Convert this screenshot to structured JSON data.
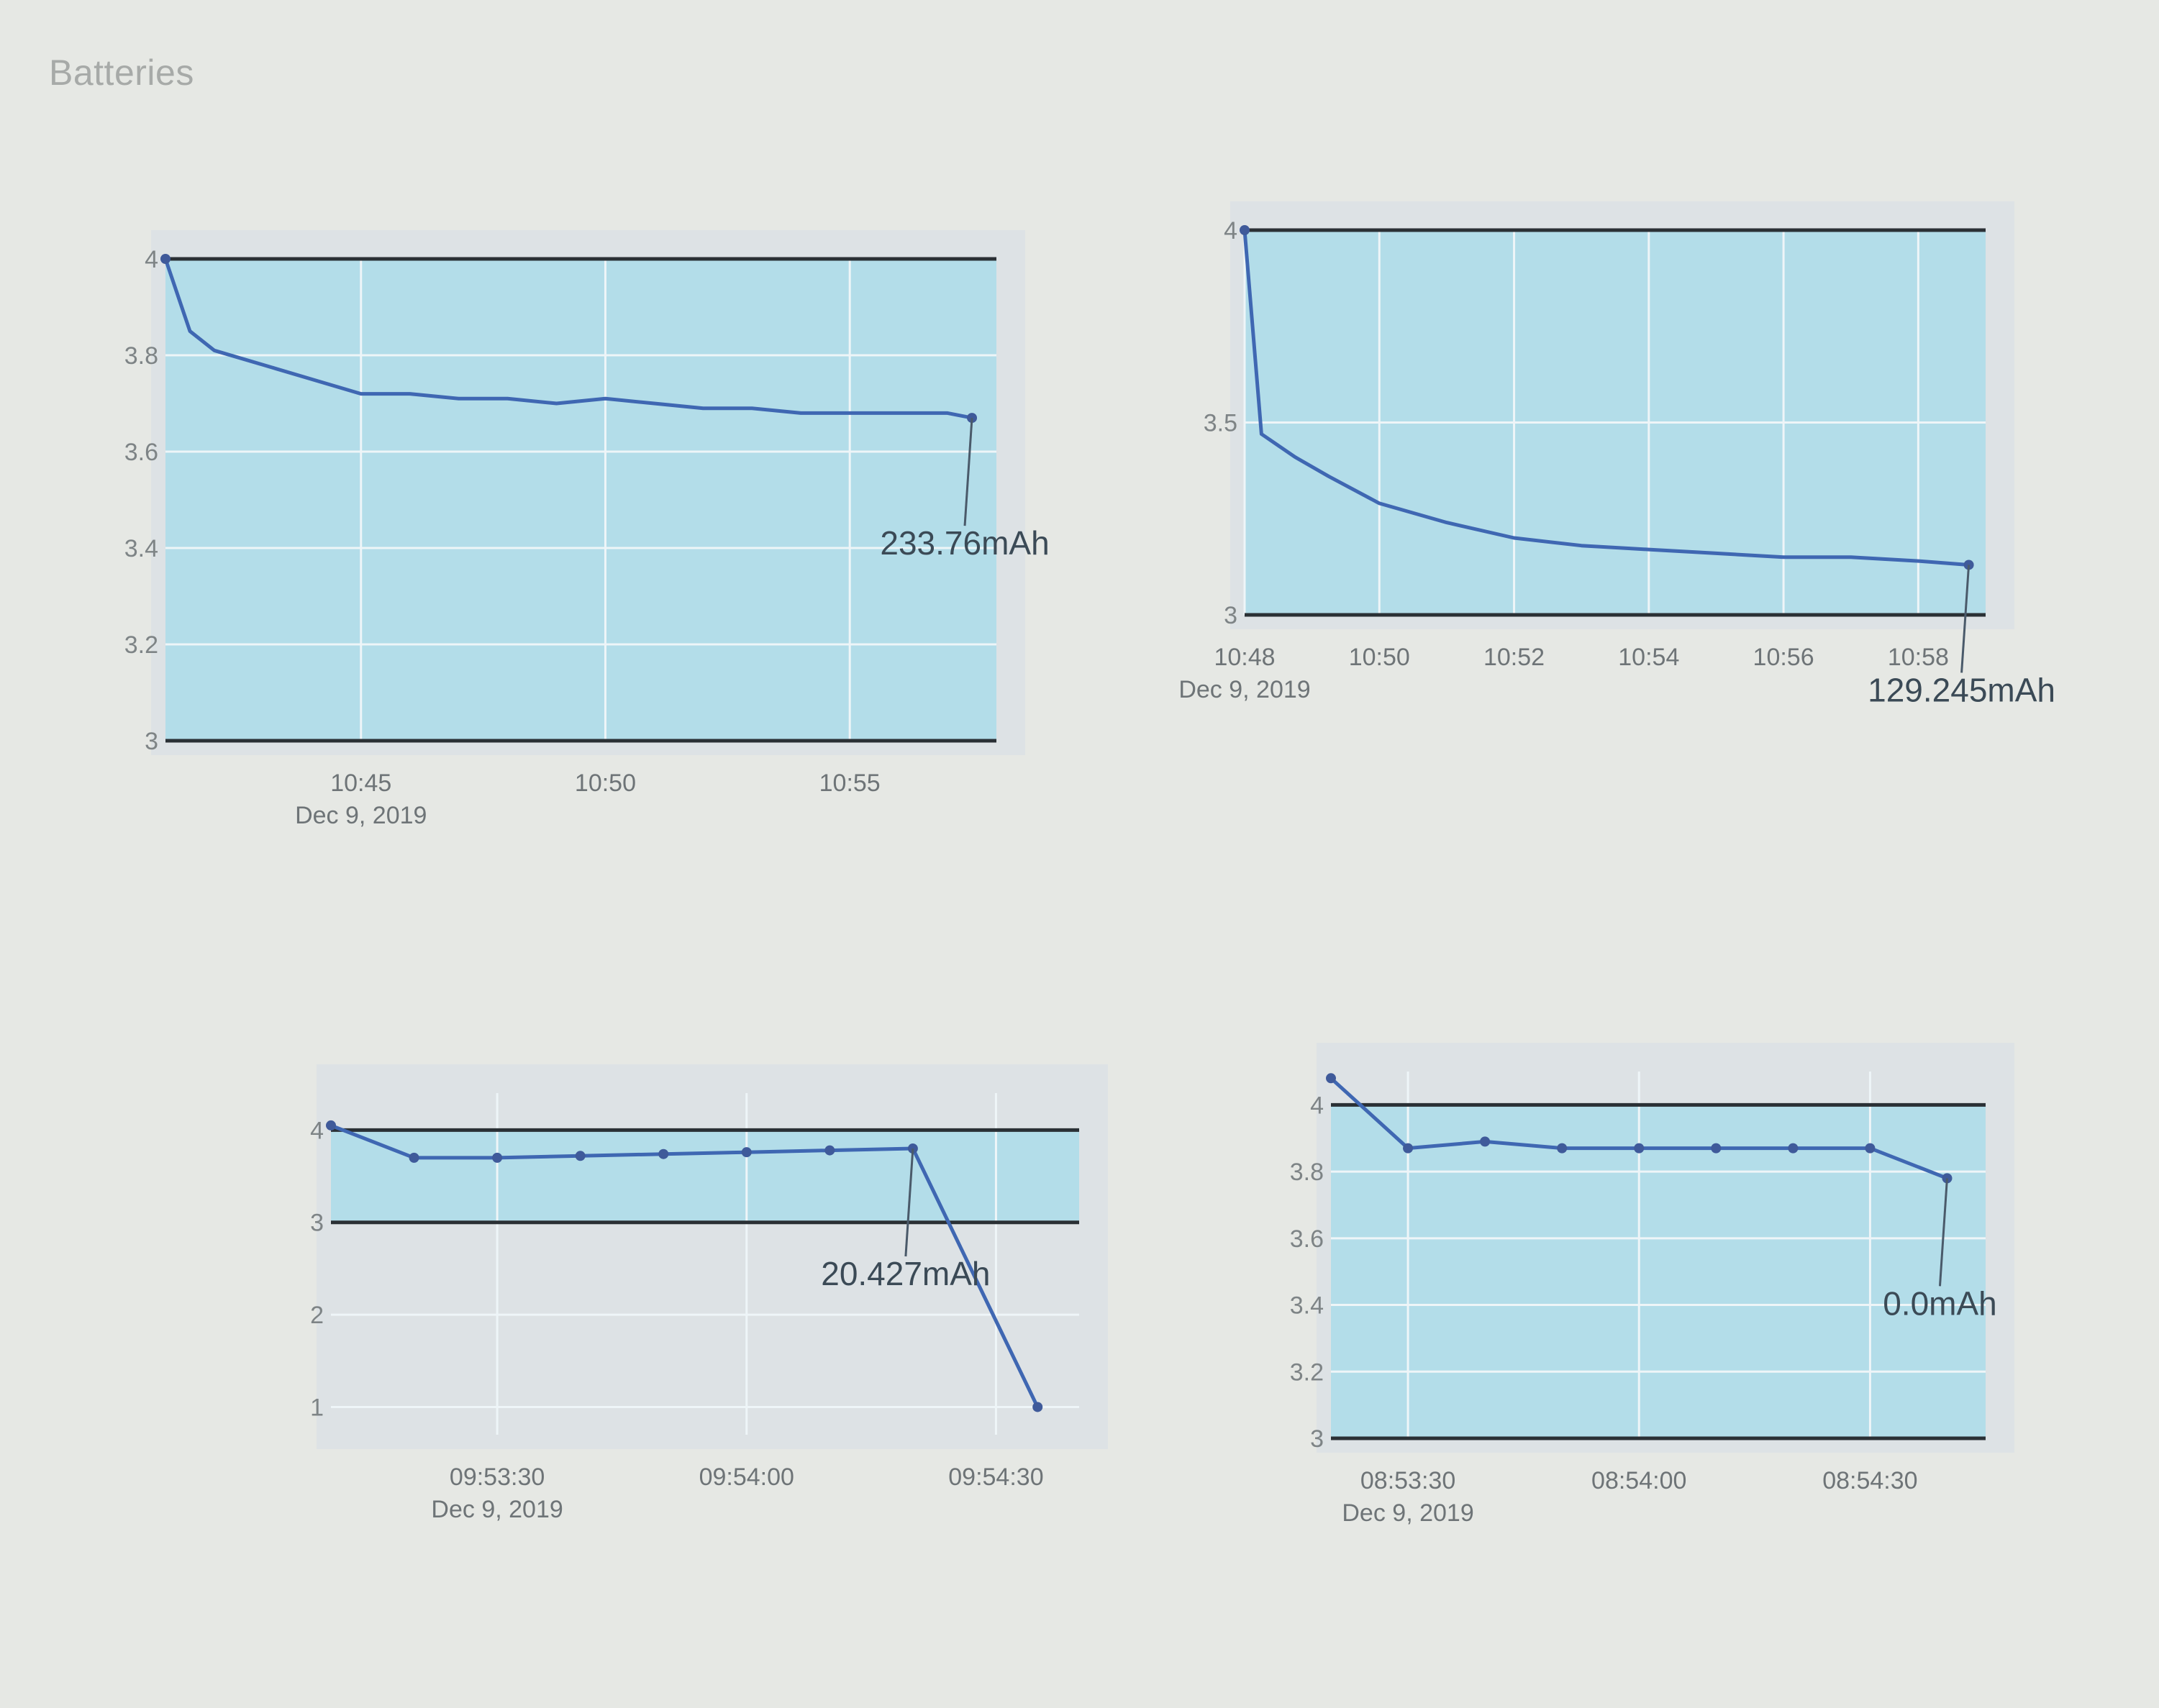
{
  "page": {
    "title": "Batteries"
  },
  "colors": {
    "area": "#b3dde9",
    "series": "#3f67b2",
    "limit": "#2a3035"
  },
  "chart_data": [
    {
      "type": "line",
      "title": "",
      "xlabel": "",
      "ylabel": "",
      "x_axis": "time",
      "x_ticks": [
        {
          "t": "10:45",
          "label": "10:45",
          "sublabel": "Dec 9, 2019"
        },
        {
          "t": "10:50",
          "label": "10:50",
          "sublabel": ""
        },
        {
          "t": "10:55",
          "label": "10:55",
          "sublabel": ""
        }
      ],
      "xlim": [
        "10:41",
        "10:58"
      ],
      "ylim": [
        3,
        4
      ],
      "y_ticks": [
        3,
        3.2,
        3.4,
        3.6,
        3.8,
        4
      ],
      "y_tick_labels": [
        "3",
        "3.2",
        "3.4",
        "3.6",
        "3.8",
        "4"
      ],
      "grid": true,
      "limits": [
        3,
        4
      ],
      "series": [
        {
          "x": [
            "10:41",
            "10:41:30",
            "10:42",
            "10:43",
            "10:44",
            "10:45",
            "10:46",
            "10:47",
            "10:48",
            "10:49",
            "10:50",
            "10:51",
            "10:52",
            "10:53",
            "10:54",
            "10:55",
            "10:56",
            "10:57",
            "10:57:30"
          ],
          "y": [
            4.0,
            3.85,
            3.81,
            3.78,
            3.75,
            3.72,
            3.72,
            3.71,
            3.71,
            3.7,
            3.71,
            3.7,
            3.69,
            3.69,
            3.68,
            3.68,
            3.68,
            3.68,
            3.67
          ]
        }
      ],
      "annotation": {
        "text": "233.76mAh",
        "x": "10:57:30",
        "y": 3.67
      }
    },
    {
      "type": "line",
      "title": "",
      "xlabel": "",
      "ylabel": "",
      "x_axis": "time",
      "x_ticks": [
        {
          "t": "10:48",
          "label": "10:48",
          "sublabel": "Dec 9, 2019"
        },
        {
          "t": "10:50",
          "label": "10:50",
          "sublabel": ""
        },
        {
          "t": "10:52",
          "label": "10:52",
          "sublabel": ""
        },
        {
          "t": "10:54",
          "label": "10:54",
          "sublabel": ""
        },
        {
          "t": "10:56",
          "label": "10:56",
          "sublabel": ""
        },
        {
          "t": "10:58",
          "label": "10:58",
          "sublabel": ""
        }
      ],
      "xlim": [
        "10:48",
        "10:59"
      ],
      "ylim": [
        3,
        4
      ],
      "y_ticks": [
        3,
        3.5,
        4
      ],
      "y_tick_labels": [
        "3",
        "3.5",
        "4"
      ],
      "grid": true,
      "limits": [
        3,
        4
      ],
      "series": [
        {
          "x": [
            "10:48",
            "10:48:15",
            "10:48:45",
            "10:49:15",
            "10:50",
            "10:51",
            "10:52",
            "10:53",
            "10:54",
            "10:55",
            "10:56",
            "10:57",
            "10:58",
            "10:58:45"
          ],
          "y": [
            4.0,
            3.47,
            3.41,
            3.36,
            3.29,
            3.24,
            3.2,
            3.18,
            3.17,
            3.16,
            3.15,
            3.15,
            3.14,
            3.13
          ]
        }
      ],
      "annotation": {
        "text": "129.245mAh",
        "x": "10:58:45",
        "y": 3.13
      }
    },
    {
      "type": "line",
      "title": "",
      "xlabel": "",
      "ylabel": "",
      "x_axis": "time",
      "x_ticks": [
        {
          "t": "09:53:30",
          "label": "09:53:30",
          "sublabel": "Dec 9, 2019"
        },
        {
          "t": "09:54:00",
          "label": "09:54:00",
          "sublabel": ""
        },
        {
          "t": "09:54:30",
          "label": "09:54:30",
          "sublabel": ""
        }
      ],
      "xlim": [
        "09:53:10",
        "09:54:40"
      ],
      "ylim": [
        0.7,
        4.4
      ],
      "y_ticks": [
        1,
        2,
        3,
        4
      ],
      "y_tick_labels": [
        "1",
        "2",
        "3",
        "4"
      ],
      "grid": true,
      "limits": [
        3,
        4
      ],
      "series": [
        {
          "x": [
            "09:53:10",
            "09:53:20",
            "09:53:30",
            "09:53:40",
            "09:53:50",
            "09:54:00",
            "09:54:10",
            "09:54:20",
            "09:54:35"
          ],
          "y": [
            4.05,
            3.7,
            3.7,
            3.72,
            3.74,
            3.76,
            3.78,
            3.8,
            1.0
          ]
        }
      ],
      "annotation": {
        "text": "20.427mAh",
        "x": "09:54:20",
        "y": 3.8
      }
    },
    {
      "type": "line",
      "title": "",
      "xlabel": "",
      "ylabel": "",
      "x_axis": "time",
      "x_ticks": [
        {
          "t": "08:53:30",
          "label": "08:53:30",
          "sublabel": "Dec 9, 2019"
        },
        {
          "t": "08:54:00",
          "label": "08:54:00",
          "sublabel": ""
        },
        {
          "t": "08:54:30",
          "label": "08:54:30",
          "sublabel": ""
        }
      ],
      "xlim": [
        "08:53:20",
        "08:54:45"
      ],
      "ylim": [
        3,
        4.1
      ],
      "y_ticks": [
        3,
        3.2,
        3.4,
        3.6,
        3.8,
        4
      ],
      "y_tick_labels": [
        "3",
        "3.2",
        "3.4",
        "3.6",
        "3.8",
        "4"
      ],
      "grid": true,
      "limits": [
        3,
        4
      ],
      "series": [
        {
          "x": [
            "08:53:20",
            "08:53:30",
            "08:53:40",
            "08:53:50",
            "08:54:00",
            "08:54:10",
            "08:54:20",
            "08:54:30",
            "08:54:40"
          ],
          "y": [
            4.08,
            3.87,
            3.89,
            3.87,
            3.87,
            3.87,
            3.87,
            3.87,
            3.78
          ]
        }
      ],
      "annotation": {
        "text": "0.0mAh",
        "x": "08:54:40",
        "y": 3.78
      }
    }
  ]
}
